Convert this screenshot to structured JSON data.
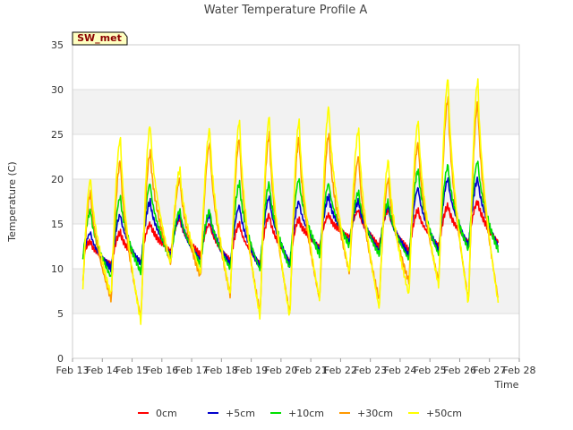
{
  "chart_data": {
    "type": "line",
    "title": "Water Temperature Profile A",
    "xlabel": "Time",
    "ylabel": "Temperature (C)",
    "badge": "SW_met",
    "xlim": [
      "Feb 13",
      "Feb 28"
    ],
    "ylim": [
      0,
      35
    ],
    "x_ticks": [
      "Feb 13",
      "Feb 14",
      "Feb 15",
      "Feb 16",
      "Feb 17",
      "Feb 18",
      "Feb 19",
      "Feb 20",
      "Feb 21",
      "Feb 22",
      "Feb 23",
      "Feb 24",
      "Feb 25",
      "Feb 26",
      "Feb 27",
      "Feb 28"
    ],
    "y_ticks": [
      0,
      5,
      10,
      15,
      20,
      25,
      30,
      35
    ],
    "grid": true,
    "legend_position": "bottom",
    "day_timestamps": [
      "Feb 13.5",
      "Feb 14.5",
      "Feb 15.5",
      "Feb 16.5",
      "Feb 17.5",
      "Feb 18.5",
      "Feb 19.5",
      "Feb 20.5",
      "Feb 21.5",
      "Feb 22.5",
      "Feb 23.5",
      "Feb 24.5",
      "Feb 25.5",
      "Feb 26.5"
    ],
    "series": [
      {
        "name": "0cm",
        "color": "#ff0000",
        "x_start": 13.35,
        "x_end": 27.3,
        "daily_min": [
          11.0,
          10.5,
          10.8,
          12.0,
          11.5,
          10.8,
          10.5,
          10.8,
          12.5,
          13.5,
          12.5,
          12.0,
          12.5,
          13.0
        ],
        "daily_max": [
          13.0,
          14.0,
          15.0,
          15.5,
          15.0,
          15.0,
          16.0,
          15.5,
          16.0,
          16.5,
          16.5,
          16.5,
          17.0,
          17.5
        ]
      },
      {
        "name": "+5cm",
        "color": "#0000cc",
        "x_start": 13.35,
        "x_end": 27.3,
        "daily_min": [
          10.5,
          10.0,
          10.5,
          11.5,
          11.0,
          10.5,
          10.2,
          10.5,
          12.0,
          13.0,
          12.0,
          11.5,
          12.0,
          12.5
        ],
        "daily_max": [
          14.0,
          16.0,
          17.5,
          16.0,
          16.0,
          17.0,
          18.0,
          17.5,
          18.0,
          17.5,
          17.0,
          19.0,
          20.0,
          20.0
        ]
      },
      {
        "name": "+10cm",
        "color": "#00e000",
        "x_start": 13.35,
        "x_end": 27.3,
        "daily_min": [
          9.5,
          9.0,
          9.5,
          11.0,
          10.5,
          10.0,
          9.8,
          10.0,
          11.5,
          12.5,
          11.5,
          11.0,
          11.5,
          12.0
        ],
        "daily_max": [
          16.5,
          18.0,
          19.5,
          16.5,
          16.5,
          19.5,
          19.5,
          20.0,
          19.5,
          18.5,
          17.5,
          21.0,
          21.5,
          22.0
        ]
      },
      {
        "name": "+30cm",
        "color": "#ff9900",
        "x_start": 13.35,
        "x_end": 27.3,
        "daily_min": [
          5.0,
          6.5,
          4.5,
          10.5,
          9.0,
          7.0,
          5.0,
          5.0,
          6.5,
          9.5,
          6.5,
          8.5,
          8.5,
          6.5
        ],
        "daily_max": [
          18.5,
          22.0,
          23.0,
          20.0,
          24.0,
          24.5,
          25.0,
          24.5,
          25.0,
          22.5,
          20.0,
          24.0,
          29.0,
          28.5
        ]
      },
      {
        "name": "+50cm",
        "color": "#ffff00",
        "x_start": 13.35,
        "x_end": 27.3,
        "daily_min": [
          4.0,
          7.0,
          4.0,
          10.5,
          9.5,
          7.0,
          4.5,
          4.5,
          6.5,
          9.5,
          5.5,
          7.0,
          8.0,
          6.0
        ],
        "daily_max": [
          20.0,
          24.5,
          26.0,
          21.0,
          25.5,
          26.5,
          27.0,
          26.5,
          28.0,
          25.5,
          22.0,
          26.5,
          31.2,
          31.0
        ]
      }
    ]
  }
}
